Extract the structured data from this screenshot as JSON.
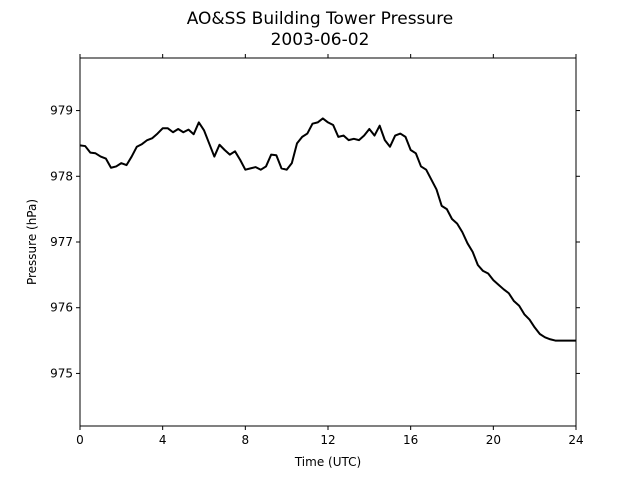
{
  "chart_data": {
    "type": "line",
    "title": "AO&SS Building Tower Pressure",
    "subtitle": "2003-06-02",
    "xlabel": "Time (UTC)",
    "ylabel": "Pressure (hPa)",
    "xlim": [
      0,
      24
    ],
    "ylim": [
      974.2,
      979.8
    ],
    "xticks": [
      0,
      4,
      8,
      12,
      16,
      20,
      24
    ],
    "yticks": [
      975,
      976,
      977,
      978,
      979
    ],
    "grid": false,
    "legend": "none",
    "series": [
      {
        "color": "#000000",
        "x": [
          0,
          0.25,
          0.5,
          0.75,
          1.0,
          1.25,
          1.5,
          1.75,
          2.0,
          2.25,
          2.5,
          2.75,
          3.0,
          3.25,
          3.5,
          3.75,
          4.0,
          4.25,
          4.5,
          4.75,
          5.0,
          5.25,
          5.5,
          5.75,
          6.0,
          6.25,
          6.5,
          6.75,
          7.0,
          7.25,
          7.5,
          7.75,
          8.0,
          8.25,
          8.5,
          8.75,
          9.0,
          9.25,
          9.5,
          9.75,
          10.0,
          10.25,
          10.5,
          10.75,
          11.0,
          11.25,
          11.5,
          11.75,
          12.0,
          12.25,
          12.5,
          12.75,
          13.0,
          13.25,
          13.5,
          13.75,
          14.0,
          14.25,
          14.5,
          14.75,
          15.0,
          15.25,
          15.5,
          15.75,
          16.0,
          16.25,
          16.5,
          16.75,
          17.0,
          17.25,
          17.5,
          17.75,
          18.0,
          18.25,
          18.5,
          18.75,
          19.0,
          19.25,
          19.5,
          19.75,
          20.0,
          20.25,
          20.5,
          20.75,
          21.0,
          21.25,
          21.5,
          21.75,
          22.0,
          22.25,
          22.5,
          22.75,
          23.0,
          23.25,
          23.5,
          23.75,
          24.0
        ],
        "y": [
          978.47,
          978.46,
          978.36,
          978.35,
          978.3,
          978.27,
          978.13,
          978.15,
          978.2,
          978.17,
          978.3,
          978.45,
          978.49,
          978.55,
          978.58,
          978.65,
          978.73,
          978.73,
          978.67,
          978.72,
          978.67,
          978.71,
          978.64,
          978.82,
          978.7,
          978.5,
          978.3,
          978.48,
          978.4,
          978.33,
          978.38,
          978.25,
          978.1,
          978.12,
          978.14,
          978.1,
          978.15,
          978.33,
          978.32,
          978.12,
          978.1,
          978.2,
          978.5,
          978.6,
          978.65,
          978.8,
          978.82,
          978.88,
          978.82,
          978.78,
          978.6,
          978.62,
          978.55,
          978.57,
          978.55,
          978.62,
          978.72,
          978.62,
          978.77,
          978.55,
          978.45,
          978.62,
          978.65,
          978.6,
          978.4,
          978.35,
          978.15,
          978.1,
          977.95,
          977.8,
          977.55,
          977.5,
          977.35,
          977.28,
          977.15,
          976.98,
          976.85,
          976.65,
          976.56,
          976.52,
          976.42,
          976.35,
          976.28,
          976.22,
          976.1,
          976.03,
          975.9,
          975.82,
          975.7,
          975.6,
          975.55,
          975.52,
          975.5,
          975.5,
          975.5,
          975.5,
          975.5
        ]
      }
    ]
  }
}
